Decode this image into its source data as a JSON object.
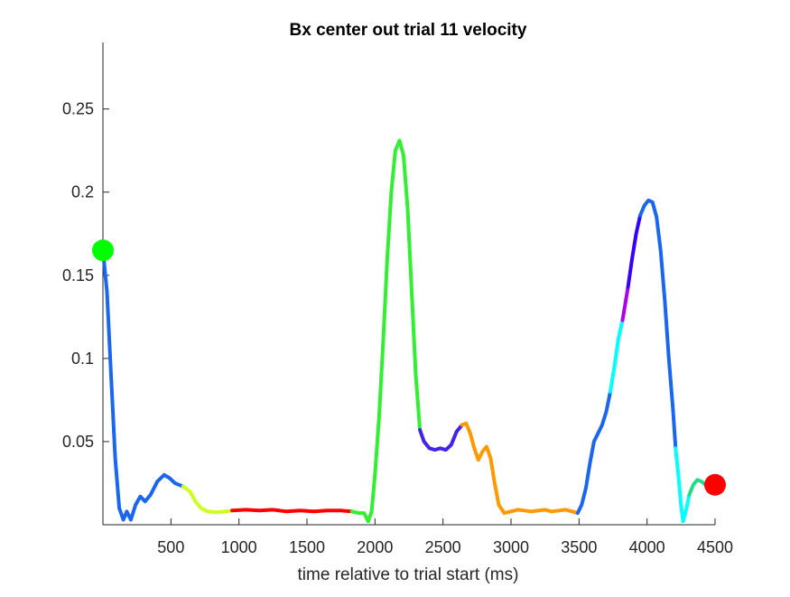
{
  "chart_data": {
    "type": "line",
    "title": "Bx  center out trial 11 velocity",
    "xlabel": "time relative to trial start (ms)",
    "ylabel": "",
    "xlim": [
      0,
      4500
    ],
    "ylim": [
      0,
      0.29
    ],
    "xticks": [
      500,
      1000,
      1500,
      2000,
      2500,
      3000,
      3500,
      4000,
      4500
    ],
    "yticks": [
      0.05,
      0.1,
      0.15,
      0.2,
      0.25
    ],
    "xtick_labels": [
      "500",
      "1000",
      "1500",
      "2000",
      "2500",
      "3000",
      "3500",
      "4000",
      "4500"
    ],
    "ytick_labels": [
      "0.05",
      "0.1",
      "0.15",
      "0.2",
      "0.25"
    ],
    "grid": false,
    "box": "left-bottom",
    "start_marker": {
      "x": 0,
      "y": 0.165,
      "color": "#00ff00"
    },
    "end_marker": {
      "x": 4500,
      "y": 0.024,
      "color": "#ff0000"
    },
    "segments": [
      {
        "color": "#1a66ee",
        "points": [
          [
            0,
            0.165
          ],
          [
            30,
            0.14
          ],
          [
            60,
            0.09
          ],
          [
            90,
            0.04
          ],
          [
            120,
            0.01
          ],
          [
            150,
            0.003
          ],
          [
            175,
            0.008
          ],
          [
            205,
            0.003
          ],
          [
            240,
            0.012
          ],
          [
            275,
            0.017
          ],
          [
            310,
            0.014
          ],
          [
            350,
            0.018
          ],
          [
            400,
            0.026
          ],
          [
            450,
            0.03
          ],
          [
            490,
            0.028
          ],
          [
            530,
            0.025
          ],
          [
            560,
            0.024
          ],
          [
            590,
            0.023
          ]
        ]
      },
      {
        "color": "#ccff22",
        "points": [
          [
            590,
            0.023
          ],
          [
            640,
            0.02
          ],
          [
            680,
            0.014
          ],
          [
            720,
            0.01
          ],
          [
            770,
            0.008
          ],
          [
            830,
            0.0075
          ],
          [
            900,
            0.008
          ],
          [
            950,
            0.0085
          ]
        ]
      },
      {
        "color": "#ff0000",
        "points": [
          [
            950,
            0.0085
          ],
          [
            1050,
            0.009
          ],
          [
            1150,
            0.0085
          ],
          [
            1250,
            0.009
          ],
          [
            1350,
            0.008
          ],
          [
            1450,
            0.0085
          ],
          [
            1550,
            0.008
          ],
          [
            1650,
            0.0085
          ],
          [
            1750,
            0.0085
          ],
          [
            1830,
            0.008
          ]
        ]
      },
      {
        "color": "#33ee33",
        "points": [
          [
            1830,
            0.008
          ],
          [
            1880,
            0.007
          ],
          [
            1920,
            0.007
          ],
          [
            1950,
            0.002
          ],
          [
            1975,
            0.008
          ],
          [
            2000,
            0.03
          ],
          [
            2030,
            0.065
          ],
          [
            2060,
            0.11
          ],
          [
            2090,
            0.16
          ],
          [
            2120,
            0.2
          ],
          [
            2150,
            0.225
          ],
          [
            2180,
            0.231
          ],
          [
            2210,
            0.222
          ],
          [
            2240,
            0.19
          ],
          [
            2270,
            0.14
          ],
          [
            2300,
            0.09
          ],
          [
            2330,
            0.057
          ]
        ]
      },
      {
        "color": "#4422ee",
        "points": [
          [
            2330,
            0.057
          ],
          [
            2360,
            0.05
          ],
          [
            2400,
            0.046
          ],
          [
            2440,
            0.045
          ],
          [
            2480,
            0.046
          ],
          [
            2520,
            0.045
          ],
          [
            2560,
            0.048
          ],
          [
            2600,
            0.056
          ],
          [
            2640,
            0.06
          ]
        ]
      },
      {
        "color": "#ff9900",
        "points": [
          [
            2640,
            0.06
          ],
          [
            2670,
            0.061
          ],
          [
            2700,
            0.055
          ],
          [
            2730,
            0.046
          ],
          [
            2760,
            0.039
          ],
          [
            2790,
            0.044
          ],
          [
            2820,
            0.047
          ],
          [
            2850,
            0.04
          ],
          [
            2880,
            0.025
          ],
          [
            2910,
            0.012
          ],
          [
            2950,
            0.007
          ],
          [
            3000,
            0.008
          ],
          [
            3050,
            0.009
          ],
          [
            3100,
            0.0085
          ],
          [
            3150,
            0.008
          ],
          [
            3200,
            0.0085
          ],
          [
            3250,
            0.009
          ],
          [
            3300,
            0.008
          ],
          [
            3350,
            0.0085
          ],
          [
            3400,
            0.009
          ],
          [
            3450,
            0.008
          ],
          [
            3490,
            0.007
          ]
        ]
      },
      {
        "color": "#1a66ee",
        "points": [
          [
            3490,
            0.007
          ],
          [
            3520,
            0.012
          ],
          [
            3550,
            0.022
          ],
          [
            3580,
            0.037
          ],
          [
            3610,
            0.05
          ],
          [
            3640,
            0.055
          ],
          [
            3670,
            0.06
          ],
          [
            3700,
            0.068
          ],
          [
            3730,
            0.08
          ]
        ]
      },
      {
        "color": "#00ffff",
        "points": [
          [
            3730,
            0.08
          ],
          [
            3760,
            0.095
          ],
          [
            3790,
            0.112
          ],
          [
            3820,
            0.123
          ]
        ]
      },
      {
        "color": "#aa00ee",
        "points": [
          [
            3820,
            0.123
          ],
          [
            3840,
            0.133
          ],
          [
            3860,
            0.143
          ]
        ]
      },
      {
        "color": "#3300ff",
        "points": [
          [
            3860,
            0.143
          ],
          [
            3890,
            0.16
          ],
          [
            3920,
            0.175
          ],
          [
            3950,
            0.186
          ]
        ]
      },
      {
        "color": "#1a66ee",
        "points": [
          [
            3950,
            0.186
          ],
          [
            3980,
            0.192
          ],
          [
            4010,
            0.195
          ],
          [
            4040,
            0.194
          ],
          [
            4070,
            0.185
          ],
          [
            4100,
            0.165
          ],
          [
            4130,
            0.135
          ],
          [
            4160,
            0.1
          ],
          [
            4190,
            0.07
          ],
          [
            4210,
            0.046
          ]
        ]
      },
      {
        "color": "#00ffff",
        "points": [
          [
            4210,
            0.046
          ],
          [
            4230,
            0.03
          ],
          [
            4250,
            0.012
          ],
          [
            4265,
            0.002
          ],
          [
            4290,
            0.01
          ],
          [
            4310,
            0.018
          ]
        ]
      },
      {
        "color": "#22dd88",
        "points": [
          [
            4310,
            0.018
          ],
          [
            4340,
            0.024
          ],
          [
            4370,
            0.027
          ],
          [
            4400,
            0.026
          ],
          [
            4430,
            0.024
          ],
          [
            4470,
            0.024
          ],
          [
            4500,
            0.024
          ]
        ]
      }
    ]
  }
}
